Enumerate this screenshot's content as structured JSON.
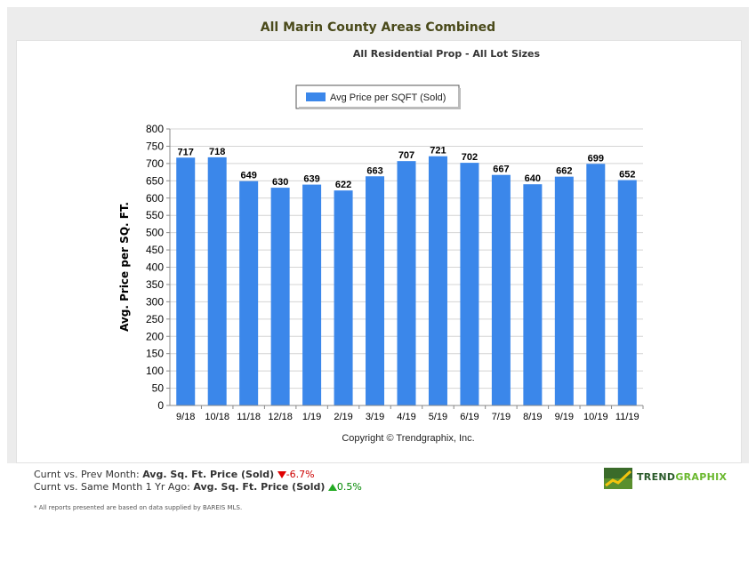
{
  "header": {
    "title": "All Marin County Areas Combined",
    "subtitle": "All Residential Prop - All Lot Sizes"
  },
  "chart_data": {
    "type": "bar",
    "title": "All Marin County Areas Combined",
    "subtitle": "All Residential Prop - All Lot Sizes",
    "xlabel": "",
    "ylabel": "Avg. Price per SQ. FT.",
    "ylim": [
      0,
      800
    ],
    "yticks": [
      0,
      50,
      100,
      150,
      200,
      250,
      300,
      350,
      400,
      450,
      500,
      550,
      600,
      650,
      700,
      750,
      800
    ],
    "grid": true,
    "legend_position": "top",
    "categories": [
      "9/18",
      "10/18",
      "11/18",
      "12/18",
      "1/19",
      "2/19",
      "3/19",
      "4/19",
      "5/19",
      "6/19",
      "7/19",
      "8/19",
      "9/19",
      "10/19",
      "11/19"
    ],
    "series": [
      {
        "name": "Avg Price per SQFT (Sold)",
        "color": "#3b87ea",
        "values": [
          717,
          718,
          649,
          630,
          639,
          622,
          663,
          707,
          721,
          702,
          667,
          640,
          662,
          699,
          652
        ]
      }
    ],
    "copyright": "Copyright © Trendgraphix, Inc."
  },
  "summary": {
    "line1_label": "Curnt vs. Prev Month:",
    "line1_metric": "Avg. Sq. Ft. Price (Sold)",
    "line1_change": "-6.7%",
    "line2_label": "Curnt vs. Same Month 1 Yr Ago:",
    "line2_metric": "Avg. Sq. Ft. Price (Sold)",
    "line2_change": "0.5%"
  },
  "footnote": "* All reports presented are based on data supplied by BAREIS MLS.",
  "logo": {
    "text_part1": "TREND",
    "text_part2": "GRAPHIX"
  },
  "colors": {
    "bar": "#3b87ea",
    "down": "#cc0000",
    "up": "#008800"
  }
}
